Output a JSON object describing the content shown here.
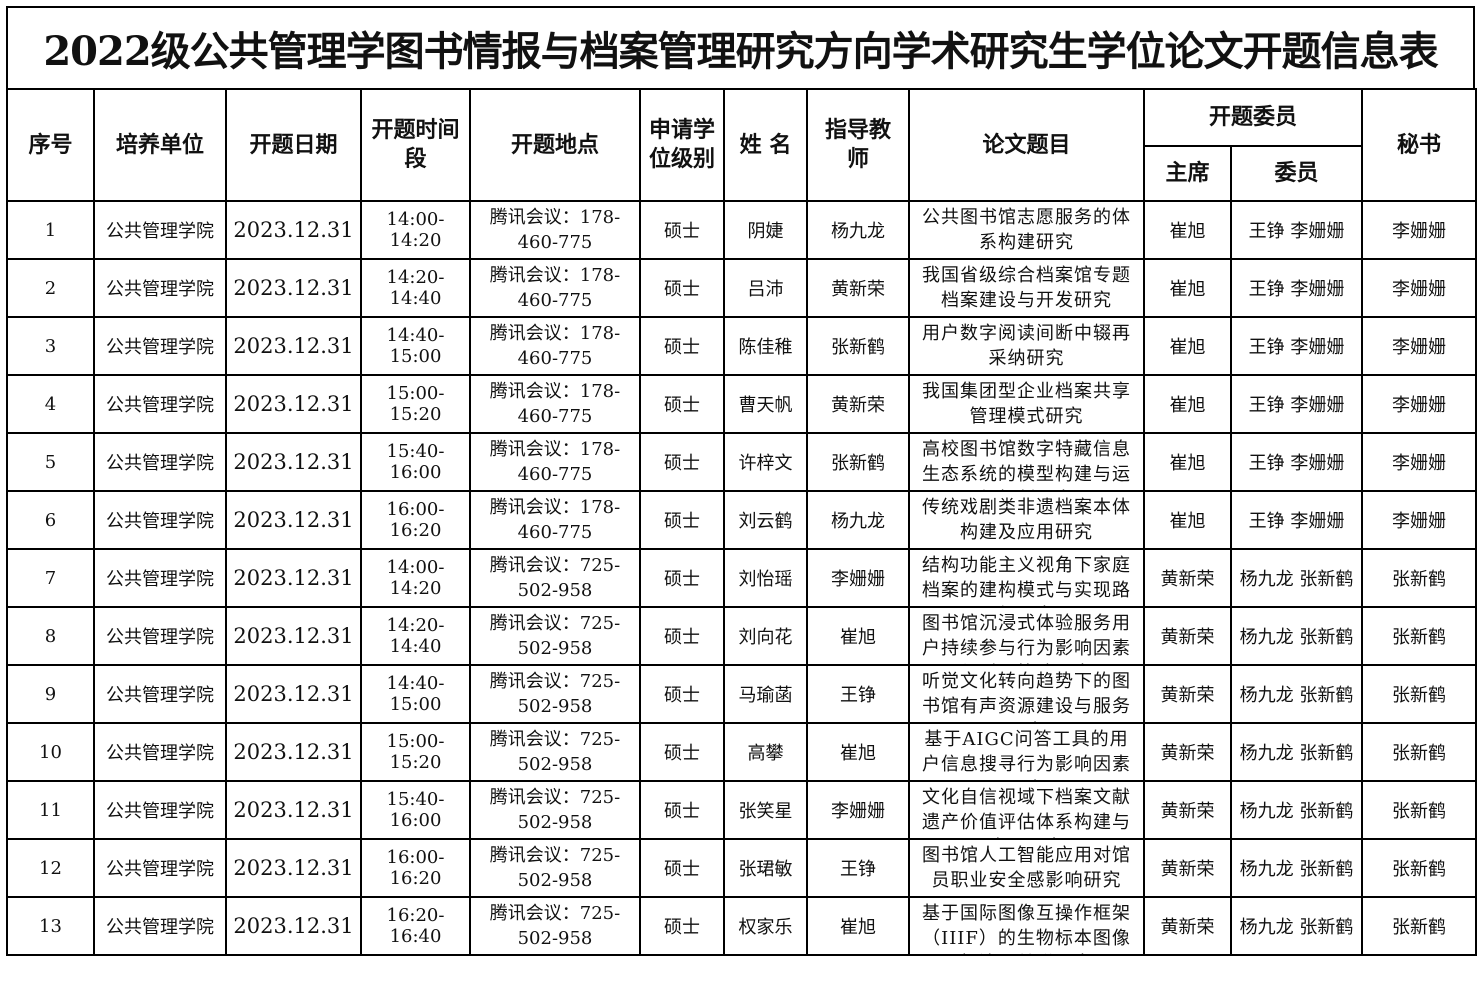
{
  "title": "2022级公共管理学图书情报与档案管理研究方向学术研究生学位论文开题信息表",
  "headers": {
    "no": "序号",
    "unit": "培养单位",
    "date": "开题日期",
    "time": "开题时间段",
    "place": "开题地点",
    "degree": "申请学位级别",
    "name": "姓 名",
    "advisor": "指导教师",
    "topic": "论文题目",
    "committee": "开题委员",
    "chair": "主席",
    "members": "委员",
    "secretary": "秘书"
  },
  "rows": [
    {
      "no": "1",
      "unit": "公共管理学院",
      "date": "2023.12.31",
      "time": "14:00-14:20",
      "place": "腾讯会议：178-460-775",
      "degree": "硕士",
      "name": "阴婕",
      "advisor": "杨九龙",
      "topic": "公共图书馆志愿服务的体系构建研究",
      "chair": "崔旭",
      "members": "王铮 李姗姗",
      "secretary": "李姗姗"
    },
    {
      "no": "2",
      "unit": "公共管理学院",
      "date": "2023.12.31",
      "time": "14:20-14:40",
      "place": "腾讯会议：178-460-775",
      "degree": "硕士",
      "name": "吕沛",
      "advisor": "黄新荣",
      "topic": "我国省级综合档案馆专题档案建设与开发研究",
      "chair": "崔旭",
      "members": "王铮 李姗姗",
      "secretary": "李姗姗"
    },
    {
      "no": "3",
      "unit": "公共管理学院",
      "date": "2023.12.31",
      "time": "14:40-15:00",
      "place": "腾讯会议：178-460-775",
      "degree": "硕士",
      "name": "陈佳稚",
      "advisor": "张新鹤",
      "topic": "用户数字阅读间断中辍再采纳研究",
      "chair": "崔旭",
      "members": "王铮 李姗姗",
      "secretary": "李姗姗"
    },
    {
      "no": "4",
      "unit": "公共管理学院",
      "date": "2023.12.31",
      "time": "15:00-15:20",
      "place": "腾讯会议：178-460-775",
      "degree": "硕士",
      "name": "曹天帆",
      "advisor": "黄新荣",
      "topic": "我国集团型企业档案共享管理模式研究",
      "chair": "崔旭",
      "members": "王铮 李姗姗",
      "secretary": "李姗姗"
    },
    {
      "no": "5",
      "unit": "公共管理学院",
      "date": "2023.12.31",
      "time": "15:40-16:00",
      "place": "腾讯会议：178-460-775",
      "degree": "硕士",
      "name": "许梓文",
      "advisor": "张新鹤",
      "topic": "高校图书馆数字特藏信息生态系统的模型构建与运行机制研究",
      "chair": "崔旭",
      "members": "王铮 李姗姗",
      "secretary": "李姗姗"
    },
    {
      "no": "6",
      "unit": "公共管理学院",
      "date": "2023.12.31",
      "time": "16:00-16:20",
      "place": "腾讯会议：178-460-775",
      "degree": "硕士",
      "name": "刘云鹤",
      "advisor": "杨九龙",
      "topic": "传统戏剧类非遗档案本体构建及应用研究",
      "chair": "崔旭",
      "members": "王铮 李姗姗",
      "secretary": "李姗姗"
    },
    {
      "no": "7",
      "unit": "公共管理学院",
      "date": "2023.12.31",
      "time": "14:00-14:20",
      "place": "腾讯会议：725-502-958",
      "degree": "硕士",
      "name": "刘怡瑶",
      "advisor": "李姗姗",
      "topic": "结构功能主义视角下家庭档案的建构模式与实现路径研究",
      "chair": "黄新荣",
      "members": "杨九龙 张新鹤",
      "secretary": "张新鹤"
    },
    {
      "no": "8",
      "unit": "公共管理学院",
      "date": "2023.12.31",
      "time": "14:20-14:40",
      "place": "腾讯会议：725-502-958",
      "degree": "硕士",
      "name": "刘向花",
      "advisor": "崔旭",
      "topic": "图书馆沉浸式体验服务用户持续参与行为影响因素与引导策略研究",
      "chair": "黄新荣",
      "members": "杨九龙 张新鹤",
      "secretary": "张新鹤"
    },
    {
      "no": "9",
      "unit": "公共管理学院",
      "date": "2023.12.31",
      "time": "14:40-15:00",
      "place": "腾讯会议：725-502-958",
      "degree": "硕士",
      "name": "马瑜菡",
      "advisor": "王铮",
      "topic": "听觉文化转向趋势下的图书馆有声资源建设与服务研究",
      "chair": "黄新荣",
      "members": "杨九龙 张新鹤",
      "secretary": "张新鹤"
    },
    {
      "no": "10",
      "unit": "公共管理学院",
      "date": "2023.12.31",
      "time": "15:00-15:20",
      "place": "腾讯会议：725-502-958",
      "degree": "硕士",
      "name": "高攀",
      "advisor": "崔旭",
      "topic": "基于AIGC问答工具的用户信息搜寻行为影响因素研究",
      "chair": "黄新荣",
      "members": "杨九龙 张新鹤",
      "secretary": "张新鹤"
    },
    {
      "no": "11",
      "unit": "公共管理学院",
      "date": "2023.12.31",
      "time": "15:40-16:00",
      "place": "腾讯会议：725-502-958",
      "degree": "硕士",
      "name": "张笑星",
      "advisor": "李姗姗",
      "topic": "文化自信视域下档案文献遗产价值评估体系构建与应用研究",
      "chair": "黄新荣",
      "members": "杨九龙 张新鹤",
      "secretary": "张新鹤"
    },
    {
      "no": "12",
      "unit": "公共管理学院",
      "date": "2023.12.31",
      "time": "16:00-16:20",
      "place": "腾讯会议：725-502-958",
      "degree": "硕士",
      "name": "张珺敏",
      "advisor": "王铮",
      "topic": "图书馆人工智能应用对馆员职业安全感影响研究",
      "chair": "黄新荣",
      "members": "杨九龙 张新鹤",
      "secretary": "张新鹤"
    },
    {
      "no": "13",
      "unit": "公共管理学院",
      "date": "2023.12.31",
      "time": "16:20-16:40",
      "place": "腾讯会议：725-502-958",
      "degree": "硕士",
      "name": "权家乐",
      "advisor": "崔旭",
      "topic": "基于国际图像互操作框架（IIIF）的生物标本图像标注及关联研究",
      "chair": "黄新荣",
      "members": "杨九龙 张新鹤",
      "secretary": "张新鹤"
    }
  ]
}
